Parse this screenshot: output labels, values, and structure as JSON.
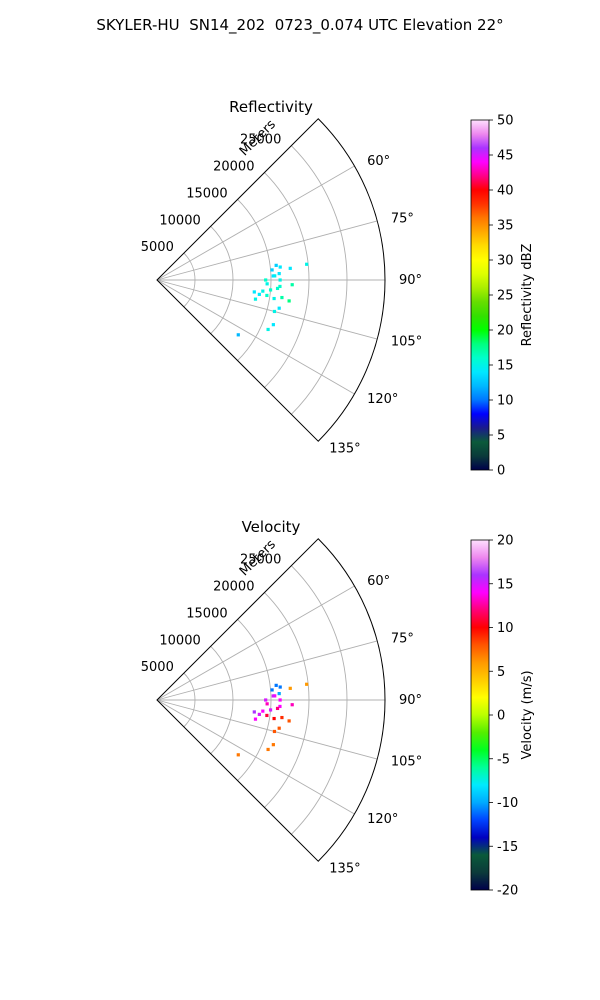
{
  "title": "SKYLER-HU  SN14_202  0723_0.074 UTC Elevation 22°",
  "colors": {
    "grid": "#b0b0b0",
    "frame": "#000000"
  },
  "chart_data": [
    {
      "type": "heatmap",
      "title": "Reflectivity",
      "range_label": "Meters",
      "range_ticks": [
        5000,
        10000,
        15000,
        20000,
        25000
      ],
      "range_limits": [
        0,
        30000
      ],
      "azimuth_ticks": [
        "60°",
        "75°",
        "90°",
        "105°",
        "120°",
        "135°"
      ],
      "azimuth_limits": [
        45,
        135
      ],
      "colorbar": {
        "label": "Reflectivity dBZ",
        "ticks": [
          0,
          5,
          10,
          15,
          20,
          25,
          30,
          35,
          40,
          45,
          50
        ],
        "range": [
          0,
          50
        ]
      },
      "echoes": [
        {
          "az": 83,
          "r": 15800,
          "v": 13
        },
        {
          "az": 84,
          "r": 16300,
          "v": 14
        },
        {
          "az": 85,
          "r": 15200,
          "v": 13
        },
        {
          "az": 84,
          "r": 19800,
          "v": 15
        },
        {
          "az": 85,
          "r": 17600,
          "v": 14
        },
        {
          "az": 87,
          "r": 16100,
          "v": 14
        },
        {
          "az": 88,
          "r": 15500,
          "v": 15
        },
        {
          "az": 88,
          "r": 15300,
          "v": 14
        },
        {
          "az": 90,
          "r": 16200,
          "v": 15
        },
        {
          "az": 90,
          "r": 14300,
          "v": 16
        },
        {
          "az": 92,
          "r": 14500,
          "v": 15
        },
        {
          "az": 93,
          "r": 16200,
          "v": 16
        },
        {
          "az": 95,
          "r": 15000,
          "v": 16
        },
        {
          "az": 96,
          "r": 14000,
          "v": 15
        },
        {
          "az": 98,
          "r": 14600,
          "v": 16
        },
        {
          "az": 98,
          "r": 13600,
          "v": 14
        },
        {
          "az": 99,
          "r": 15600,
          "v": 15
        },
        {
          "az": 101,
          "r": 13200,
          "v": 15
        },
        {
          "az": 97,
          "r": 12900,
          "v": 14
        },
        {
          "az": 94,
          "r": 15900,
          "v": 16
        },
        {
          "az": 98,
          "r": 16600,
          "v": 17
        },
        {
          "az": 99,
          "r": 17600,
          "v": 18
        },
        {
          "az": 103,
          "r": 16500,
          "v": 14
        },
        {
          "az": 105,
          "r": 16000,
          "v": 15
        },
        {
          "az": 111,
          "r": 16400,
          "v": 14
        },
        {
          "az": 114,
          "r": 16000,
          "v": 15
        },
        {
          "az": 124,
          "r": 12900,
          "v": 12
        },
        {
          "az": 92,
          "r": 17800,
          "v": 17
        }
      ]
    },
    {
      "type": "heatmap",
      "title": "Velocity",
      "range_label": "Meters",
      "range_ticks": [
        5000,
        10000,
        15000,
        20000,
        25000
      ],
      "range_limits": [
        0,
        30000
      ],
      "azimuth_ticks": [
        "60°",
        "75°",
        "90°",
        "105°",
        "120°",
        "135°"
      ],
      "azimuth_limits": [
        45,
        135
      ],
      "colorbar": {
        "label": "Velocity (m/s)",
        "ticks": [
          -20,
          -15,
          -10,
          -5,
          0,
          5,
          10,
          15,
          20
        ],
        "range": [
          -20,
          20
        ]
      },
      "echoes": [
        {
          "az": 83,
          "r": 15800,
          "v": -11
        },
        {
          "az": 84,
          "r": 16300,
          "v": -11
        },
        {
          "az": 85,
          "r": 15200,
          "v": -11
        },
        {
          "az": 84,
          "r": 19800,
          "v": 6
        },
        {
          "az": 85,
          "r": 17600,
          "v": 6
        },
        {
          "az": 87,
          "r": 16100,
          "v": -10
        },
        {
          "az": 88,
          "r": 15500,
          "v": 14
        },
        {
          "az": 88,
          "r": 15300,
          "v": 15
        },
        {
          "az": 90,
          "r": 16200,
          "v": 14
        },
        {
          "az": 90,
          "r": 14300,
          "v": 15
        },
        {
          "az": 92,
          "r": 14500,
          "v": 13
        },
        {
          "az": 93,
          "r": 16200,
          "v": 14
        },
        {
          "az": 95,
          "r": 15000,
          "v": 15
        },
        {
          "az": 96,
          "r": 14000,
          "v": 14
        },
        {
          "az": 98,
          "r": 14600,
          "v": 11
        },
        {
          "az": 98,
          "r": 13600,
          "v": 15
        },
        {
          "az": 99,
          "r": 15600,
          "v": 10
        },
        {
          "az": 101,
          "r": 13200,
          "v": 14
        },
        {
          "az": 97,
          "r": 12900,
          "v": 16
        },
        {
          "az": 94,
          "r": 15900,
          "v": 12
        },
        {
          "az": 98,
          "r": 16600,
          "v": 9
        },
        {
          "az": 99,
          "r": 17600,
          "v": 8
        },
        {
          "az": 103,
          "r": 16500,
          "v": 8
        },
        {
          "az": 105,
          "r": 16000,
          "v": 8
        },
        {
          "az": 111,
          "r": 16400,
          "v": 7
        },
        {
          "az": 114,
          "r": 16000,
          "v": 7
        },
        {
          "az": 124,
          "r": 12900,
          "v": 7
        },
        {
          "az": 92,
          "r": 17800,
          "v": 13
        }
      ]
    }
  ]
}
